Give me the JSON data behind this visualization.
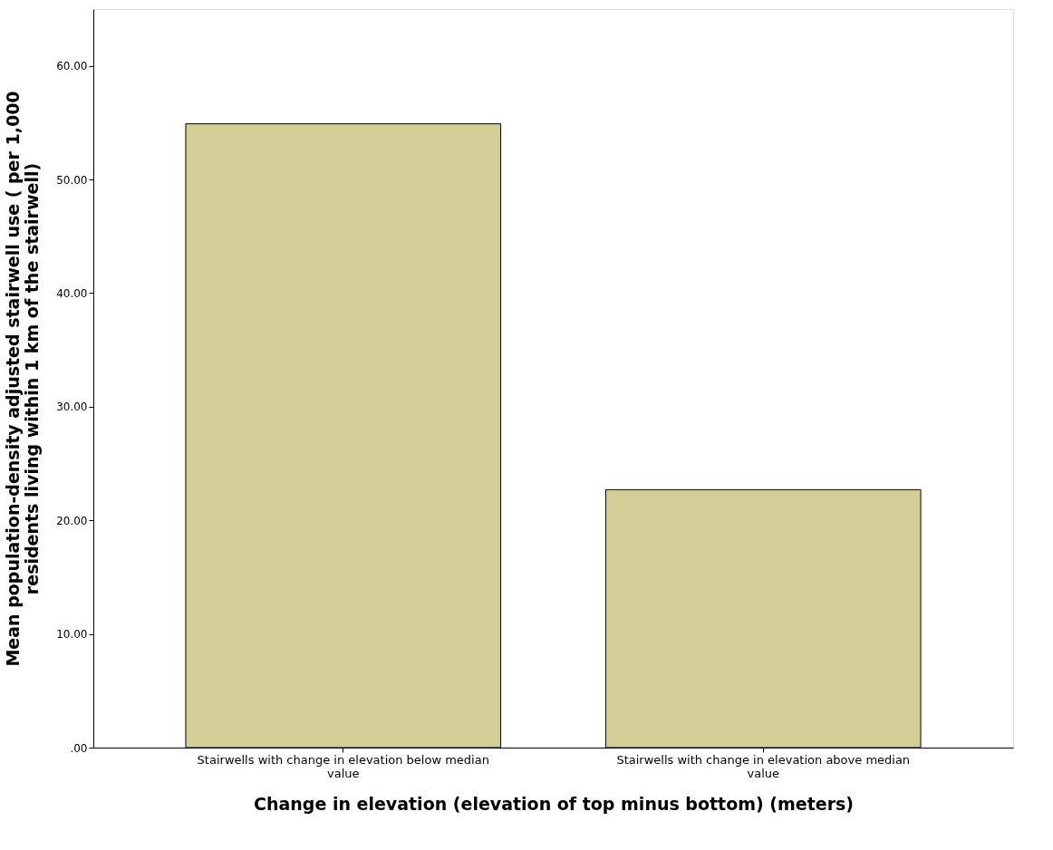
{
  "chart_data": {
    "type": "bar",
    "categories": [
      "Stairwells with change in elevation  below median value",
      "Stairwells with change in elevation  above median value"
    ],
    "values": [
      54.9,
      22.7
    ],
    "color": "#d3ce97",
    "xlabel": "Change in elevation (elevation of top minus bottom) (meters)",
    "ylabel": "Mean population-density adjusted stairwell use ( per 1,000 residents living within 1 km of the stairwell)",
    "ylim": [
      0,
      65
    ],
    "yticks": [
      {
        "value": 0,
        "label": ".00"
      },
      {
        "value": 10,
        "label": "10.00"
      },
      {
        "value": 20,
        "label": "20.00"
      },
      {
        "value": 30,
        "label": "30.00"
      },
      {
        "value": 40,
        "label": "40.00"
      },
      {
        "value": 50,
        "label": "50.00"
      },
      {
        "value": 60,
        "label": "60.00"
      }
    ],
    "grid": false
  }
}
